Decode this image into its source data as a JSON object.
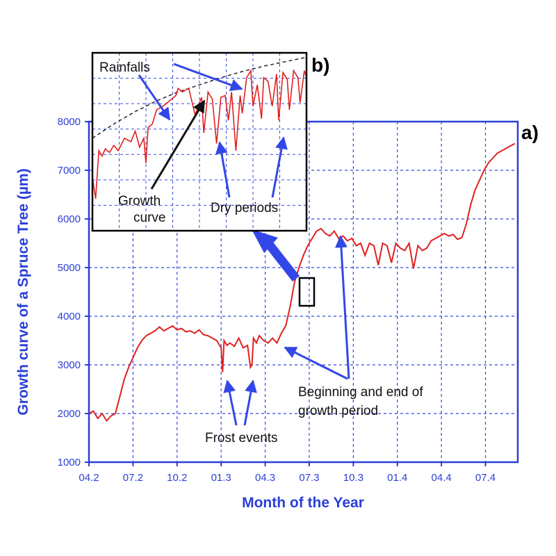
{
  "chart_data": [
    {
      "type": "line",
      "panel_label": "a)",
      "xlabel": "Month of the Year",
      "ylabel": "Growth curve of a Spruce Tree (µm)",
      "x_tick_labels": [
        "04.2",
        "07.2",
        "10.2",
        "01.3",
        "04.3",
        "07.3",
        "10.3",
        "01.4",
        "04.4",
        "07.4"
      ],
      "x_tick_index": [
        0,
        3,
        6,
        9,
        12,
        15,
        18,
        21,
        24,
        27
      ],
      "xlim": [
        0,
        29.2
      ],
      "y_ticks": [
        1000,
        2000,
        3000,
        4000,
        5000,
        6000,
        7000,
        8000
      ],
      "ylim": [
        1000,
        8000
      ],
      "grid": true,
      "series": [
        {
          "color": "#e02020",
          "x": [
            0.0,
            0.3,
            0.6,
            0.9,
            1.2,
            1.5,
            1.8,
            2.1,
            2.4,
            2.7,
            3.0,
            3.3,
            3.6,
            3.9,
            4.2,
            4.5,
            4.8,
            5.1,
            5.4,
            5.7,
            6.0,
            6.3,
            6.6,
            6.9,
            7.2,
            7.5,
            7.8,
            8.1,
            8.4,
            8.7,
            9.0,
            9.1,
            9.2,
            9.4,
            9.6,
            9.9,
            10.2,
            10.5,
            10.8,
            11.0,
            11.1,
            11.2,
            11.4,
            11.6,
            11.9,
            12.2,
            12.5,
            12.8,
            13.1,
            13.4,
            13.7,
            14.0,
            14.3,
            14.6,
            14.9,
            15.2,
            15.5,
            15.8,
            16.1,
            16.4,
            16.7,
            17.0,
            17.3,
            17.6,
            17.9,
            18.2,
            18.5,
            18.8,
            19.1,
            19.4,
            19.7,
            20.0,
            20.3,
            20.6,
            20.9,
            21.2,
            21.5,
            21.8,
            22.1,
            22.4,
            22.7,
            23.0,
            23.3,
            23.6,
            23.9,
            24.2,
            24.5,
            24.8,
            25.1,
            25.4,
            25.7,
            26.0,
            26.3,
            26.6,
            26.9,
            27.2,
            27.5,
            27.8,
            28.1,
            28.4,
            28.7,
            29.0
          ],
          "y": [
            2000,
            2050,
            1900,
            2000,
            1850,
            1950,
            2000,
            2350,
            2700,
            2950,
            3150,
            3350,
            3500,
            3600,
            3650,
            3700,
            3780,
            3700,
            3750,
            3800,
            3720,
            3750,
            3680,
            3700,
            3650,
            3720,
            3620,
            3600,
            3550,
            3500,
            3350,
            2850,
            3500,
            3400,
            3450,
            3380,
            3550,
            3350,
            3400,
            2950,
            3000,
            3550,
            3450,
            3600,
            3500,
            3450,
            3550,
            3450,
            3650,
            3800,
            4200,
            4700,
            5000,
            5250,
            5450,
            5600,
            5750,
            5800,
            5700,
            5650,
            5750,
            5600,
            5650,
            5550,
            5600,
            5450,
            5500,
            5250,
            5500,
            5450,
            5050,
            5500,
            5450,
            5100,
            5500,
            5400,
            5350,
            5500,
            4980,
            5450,
            5350,
            5400,
            5550,
            5600,
            5650,
            5700,
            5650,
            5680,
            5580,
            5620,
            5900,
            6300,
            6600,
            6800,
            7000,
            7150,
            7250,
            7350,
            7400,
            7450,
            7500,
            7550
          ]
        }
      ],
      "annotations": [
        {
          "name": "frost",
          "text": "Frost events"
        },
        {
          "name": "growth-period",
          "line1": "Beginning and end of",
          "line2": "growth period"
        }
      ]
    },
    {
      "type": "line",
      "panel_label": "b)",
      "description_visible": "zoomed inset",
      "xlim": [
        0,
        10
      ],
      "ylim": [
        0,
        10
      ],
      "series": [
        {
          "color": "#e02020",
          "x": [
            0.0,
            0.15,
            0.3,
            0.45,
            0.6,
            0.8,
            1.0,
            1.2,
            1.5,
            1.8,
            2.0,
            2.2,
            2.4,
            2.5,
            2.6,
            2.8,
            3.0,
            3.3,
            3.5,
            3.7,
            3.9,
            4.0,
            4.2,
            4.5,
            4.8,
            5.0,
            5.1,
            5.2,
            5.4,
            5.6,
            5.8,
            6.0,
            6.2,
            6.35,
            6.5,
            6.7,
            6.9,
            7.0,
            7.2,
            7.4,
            7.5,
            7.7,
            7.9,
            8.0,
            8.2,
            8.4,
            8.6,
            8.7,
            8.9,
            9.1,
            9.2,
            9.4,
            9.6,
            9.7,
            9.9,
            10.0
          ],
          "y": [
            3.0,
            1.8,
            4.5,
            4.2,
            4.6,
            4.4,
            4.8,
            4.5,
            5.2,
            5.0,
            5.6,
            4.7,
            5.2,
            3.8,
            5.8,
            6.0,
            6.8,
            7.0,
            7.2,
            7.4,
            7.6,
            8.0,
            7.8,
            8.0,
            6.5,
            7.2,
            7.5,
            5.5,
            7.8,
            7.4,
            4.9,
            7.5,
            7.6,
            6.2,
            7.8,
            4.5,
            7.6,
            6.6,
            8.6,
            9.0,
            7.0,
            8.2,
            6.3,
            8.6,
            8.4,
            7.0,
            8.8,
            6.2,
            8.9,
            8.5,
            6.8,
            9.0,
            8.6,
            7.2,
            9.0,
            8.6
          ]
        },
        {
          "style": "dashed",
          "color": "#222222",
          "x": [
            0,
            1,
            2,
            3,
            4,
            5,
            6,
            7,
            8,
            9,
            10
          ],
          "y": [
            5.2,
            6.0,
            6.7,
            7.3,
            7.8,
            8.2,
            8.6,
            8.95,
            9.25,
            9.5,
            9.75
          ]
        }
      ],
      "annotations": [
        {
          "name": "rainfalls",
          "text": "Rainfalls"
        },
        {
          "name": "growth-curve",
          "line1": "Growth",
          "line2": "curve"
        },
        {
          "name": "dry",
          "text": "Dry periods"
        }
      ]
    }
  ],
  "colors": {
    "axis": "#2a3fd6",
    "grid": "#3346e0",
    "data_line": "#e02020",
    "arrow": "#3347e8"
  }
}
